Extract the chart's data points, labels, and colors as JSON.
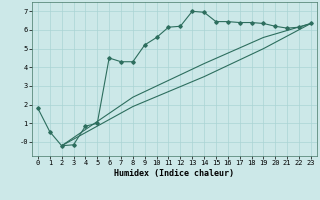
{
  "xlabel": "Humidex (Indice chaleur)",
  "bg_color": "#cce8e8",
  "line_color": "#2d6e5e",
  "xlim": [
    -0.5,
    23.5
  ],
  "ylim": [
    -0.75,
    7.5
  ],
  "xticks": [
    0,
    1,
    2,
    3,
    4,
    5,
    6,
    7,
    8,
    9,
    10,
    11,
    12,
    13,
    14,
    15,
    16,
    17,
    18,
    19,
    20,
    21,
    22,
    23
  ],
  "yticks": [
    0,
    1,
    2,
    3,
    4,
    5,
    6,
    7
  ],
  "ytick_labels": [
    "-0",
    "1",
    "2",
    "3",
    "4",
    "5",
    "6",
    "7"
  ],
  "line1_x": [
    0,
    1,
    2,
    3,
    4,
    5,
    6,
    7,
    8,
    9,
    10,
    11,
    12,
    13,
    14,
    15,
    16,
    17,
    18,
    19,
    20,
    21,
    22,
    23
  ],
  "line1_y": [
    1.8,
    0.55,
    -0.2,
    -0.15,
    0.85,
    1.0,
    4.5,
    4.3,
    4.3,
    5.2,
    5.6,
    6.15,
    6.2,
    7.0,
    6.95,
    6.45,
    6.45,
    6.4,
    6.4,
    6.35,
    6.2,
    6.1,
    6.15,
    6.35
  ],
  "line2_x": [
    2,
    23
  ],
  "line2_y": [
    -0.2,
    6.35
  ],
  "line3_x": [
    2,
    23
  ],
  "line3_y": [
    -0.2,
    6.35
  ],
  "line2_ctrl_x": [
    2,
    8,
    14,
    19,
    23
  ],
  "line2_ctrl_y": [
    -0.2,
    1.9,
    3.5,
    5.0,
    6.35
  ],
  "line3_ctrl_x": [
    2,
    8,
    14,
    19,
    23
  ],
  "line3_ctrl_y": [
    -0.2,
    2.4,
    4.2,
    5.6,
    6.35
  ],
  "grid_color": "#aad4d4",
  "font_size": 6,
  "marker": "D",
  "marker_size": 1.8
}
